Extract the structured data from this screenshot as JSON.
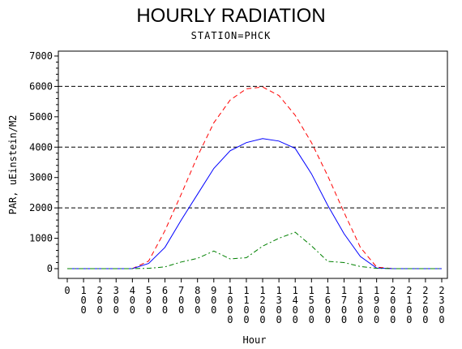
{
  "chart_data": {
    "type": "line",
    "title": "HOURLY RADIATION",
    "subtitle": "STATION=PHCK",
    "xlabel": "Hour",
    "ylabel": "PAR, uEinstein/M2",
    "ylim": [
      0,
      7000
    ],
    "yticks": [
      0,
      1000,
      2000,
      3000,
      4000,
      5000,
      6000,
      7000
    ],
    "ytick_labels": [
      "0",
      "1000",
      "2000",
      "3000",
      "4000",
      "5000",
      "6000",
      "7000"
    ],
    "xticks": [
      0,
      100,
      200,
      300,
      400,
      500,
      600,
      700,
      800,
      900,
      1000,
      1100,
      1200,
      1300,
      1400,
      1500,
      1600,
      1700,
      1800,
      1900,
      2000,
      2100,
      2200,
      2300
    ],
    "reference_lines": [
      2000,
      4000,
      6000
    ],
    "grid": false,
    "series": [
      {
        "color": "#ff0000",
        "style": "dashed",
        "x": [
          0,
          100,
          200,
          300,
          400,
          500,
          600,
          700,
          800,
          900,
          1000,
          1100,
          1200,
          1300,
          1400,
          1500,
          1600,
          1700,
          1800,
          1900,
          2000,
          2100,
          2200,
          2300
        ],
        "values": [
          0,
          0,
          0,
          0,
          0,
          250,
          1250,
          2450,
          3700,
          4800,
          5550,
          5920,
          5980,
          5700,
          5050,
          4150,
          3050,
          1850,
          700,
          50,
          0,
          0,
          0,
          0
        ]
      },
      {
        "color": "#0000ff",
        "style": "solid",
        "x": [
          0,
          100,
          200,
          300,
          400,
          500,
          600,
          700,
          800,
          900,
          1000,
          1100,
          1200,
          1300,
          1400,
          1500,
          1600,
          1700,
          1800,
          1900,
          2000,
          2100,
          2200,
          2300
        ],
        "values": [
          0,
          0,
          0,
          0,
          0,
          170,
          700,
          1600,
          2450,
          3300,
          3880,
          4150,
          4280,
          4200,
          3960,
          3120,
          2080,
          1150,
          400,
          20,
          0,
          0,
          0,
          0
        ]
      },
      {
        "color": "#008000",
        "style": "dashdot",
        "x": [
          0,
          100,
          200,
          300,
          400,
          500,
          600,
          700,
          800,
          900,
          1000,
          1100,
          1200,
          1300,
          1400,
          1500,
          1600,
          1700,
          1800,
          1900,
          2000,
          2100,
          2200,
          2300
        ],
        "values": [
          0,
          0,
          0,
          0,
          0,
          10,
          60,
          220,
          340,
          580,
          320,
          360,
          740,
          1000,
          1200,
          750,
          240,
          200,
          70,
          10,
          0,
          0,
          0,
          0
        ]
      }
    ]
  }
}
